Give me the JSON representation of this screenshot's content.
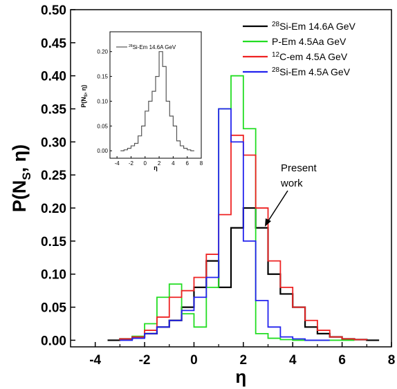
{
  "chart_data": [
    {
      "type": "line",
      "step": true,
      "title": "",
      "xlabel": "η",
      "ylabel": "P(N",
      "ylabel_sub": "S",
      "ylabel_tail": ", η)",
      "xlim": [
        -5,
        8
      ],
      "ylim": [
        -0.01,
        0.5
      ],
      "xticks": [
        "-4",
        "-2",
        "0",
        "2",
        "4",
        "6",
        "8"
      ],
      "yticks": [
        "0.00",
        "0.05",
        "0.10",
        "0.15",
        "0.20",
        "0.25",
        "0.30",
        "0.35",
        "0.40",
        "0.45",
        "0.50"
      ],
      "grid": false,
      "legend_position": "top-right",
      "annotation": {
        "line1": "Present",
        "line2": "work"
      },
      "series": [
        {
          "name": "Si-Em 14.6A GeV",
          "name_sup": "28",
          "color": "#000000",
          "x": [
            -3.5,
            -3.0,
            -2.5,
            -2.0,
            -1.5,
            -1.0,
            -0.5,
            0.0,
            0.5,
            1.0,
            1.5,
            2.0,
            2.5,
            3.0,
            3.5,
            4.0,
            4.5,
            5.0,
            5.5,
            6.0,
            6.5,
            7.0
          ],
          "values": [
            0.0,
            0.002,
            0.005,
            0.01,
            0.02,
            0.03,
            0.05,
            0.08,
            0.12,
            0.08,
            0.17,
            0.2,
            0.17,
            0.1,
            0.07,
            0.05,
            0.02,
            0.01,
            0.005,
            0.002,
            0.001,
            0.0
          ]
        },
        {
          "name": "P-Em 4.5Aa GeV",
          "color": "#22dd22",
          "x": [
            -3.0,
            -2.5,
            -2.0,
            -1.5,
            -1.0,
            -0.5,
            0.0,
            0.5,
            1.0,
            1.5,
            2.0,
            2.5,
            3.0,
            3.5,
            4.0,
            4.5,
            5.0,
            5.5,
            6.0
          ],
          "values": [
            0.002,
            0.006,
            0.025,
            0.065,
            0.085,
            0.04,
            0.02,
            0.08,
            0.35,
            0.4,
            0.32,
            0.01,
            0.003,
            0.001,
            0.0,
            0.0,
            0.0,
            0.0,
            0.0
          ]
        },
        {
          "name": "C-em 4.5A GeV",
          "name_sup": "12",
          "color": "#ee2222",
          "x": [
            -3.0,
            -2.5,
            -2.0,
            -1.5,
            -1.0,
            -0.5,
            0.0,
            0.5,
            1.0,
            1.5,
            2.0,
            2.5,
            3.0,
            3.5,
            4.0,
            4.5,
            5.0,
            5.5,
            6.0,
            6.5
          ],
          "values": [
            0.002,
            0.005,
            0.015,
            0.035,
            0.065,
            0.075,
            0.095,
            0.13,
            0.19,
            0.31,
            0.28,
            0.2,
            0.12,
            0.08,
            0.05,
            0.03,
            0.015,
            0.005,
            0.002,
            0.001
          ]
        },
        {
          "name": "Si-Em 4.5A GeV",
          "name_sup": "28",
          "color": "#2222ee",
          "x": [
            -3.0,
            -2.5,
            -2.0,
            -1.5,
            -1.0,
            -0.5,
            0.0,
            0.5,
            1.0,
            1.5,
            2.0,
            2.5,
            3.0,
            3.5,
            4.0,
            4.5,
            5.0
          ],
          "values": [
            0.0,
            0.003,
            0.01,
            0.02,
            0.03,
            0.045,
            0.065,
            0.095,
            0.35,
            0.3,
            0.15,
            0.06,
            0.02,
            0.005,
            0.002,
            0.0,
            0.0
          ]
        }
      ]
    },
    {
      "type": "line",
      "step": true,
      "title": "",
      "xlabel": "η",
      "ylabel": "P(N",
      "ylabel_sub": "S",
      "ylabel_tail": ", η)",
      "xlim": [
        -5,
        8
      ],
      "ylim": [
        -0.015,
        0.24
      ],
      "xticks": [
        "-4",
        "-2",
        "0",
        "2",
        "4",
        "6",
        "8"
      ],
      "yticks": [
        "0.00",
        "0.05",
        "0.10",
        "0.15",
        "0.20"
      ],
      "grid": false,
      "legend_position": "top-left",
      "series": [
        {
          "name": "Si-Em 14.6A GeV",
          "name_sup": "28",
          "color": "#555555",
          "x": [
            -3.5,
            -3.0,
            -2.5,
            -2.0,
            -1.5,
            -1.0,
            -0.5,
            0.0,
            0.5,
            1.0,
            1.5,
            2.0,
            2.5,
            3.0,
            3.5,
            4.0,
            4.5,
            5.0,
            5.5,
            6.0,
            6.5
          ],
          "values": [
            0.0,
            0.002,
            0.005,
            0.01,
            0.015,
            0.03,
            0.05,
            0.08,
            0.1,
            0.12,
            0.15,
            0.2,
            0.17,
            0.1,
            0.07,
            0.05,
            0.02,
            0.01,
            0.005,
            0.002,
            0.0
          ]
        }
      ]
    }
  ]
}
